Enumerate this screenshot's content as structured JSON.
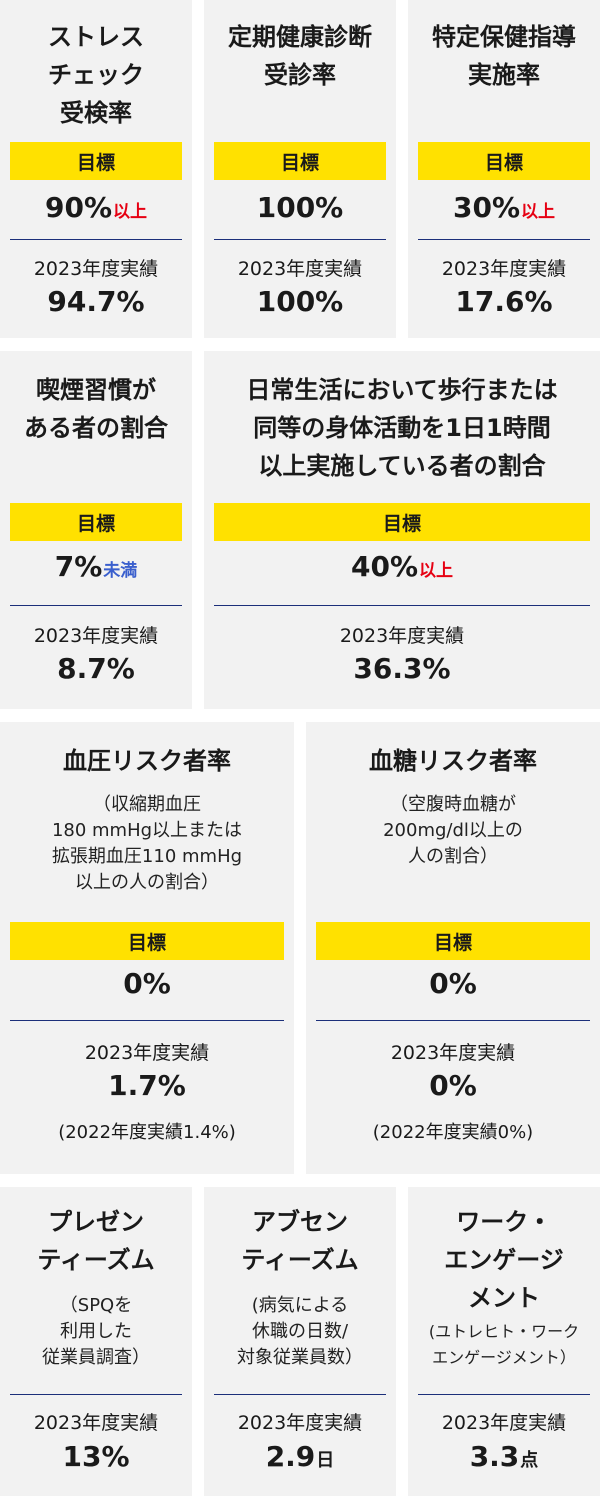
{
  "cards": [
    {
      "title": "ストレス\nチェック\n受検率",
      "target_label": "目標",
      "goal_value": "90%",
      "goal_suffix": "以上",
      "result_label": "2023年度実績",
      "result_value": "94.7%"
    },
    {
      "title": "定期健康診断\n受診率",
      "target_label": "目標",
      "goal_value": "100%",
      "result_label": "2023年度実績",
      "result_value": "100%"
    },
    {
      "title": "特定保健指導\n実施率",
      "target_label": "目標",
      "goal_value": "30%",
      "goal_suffix": "以上",
      "result_label": "2023年度実績",
      "result_value": "17.6%"
    },
    {
      "title": "喫煙習慣が\nある者の割合",
      "target_label": "目標",
      "goal_value": "7%",
      "goal_suffix": "未満",
      "result_label": "2023年度実績",
      "result_value": "8.7%"
    },
    {
      "title": "日常生活において歩行または\n同等の身体活動を1日1時間\n以上実施している者の割合",
      "target_label": "目標",
      "goal_value": "40%",
      "goal_suffix": "以上",
      "result_label": "2023年度実績",
      "result_value": "36.3%"
    },
    {
      "title": "血圧リスク者率",
      "description": "（収縮期血圧\n180 mmHg以上または\n拡張期血圧110 mmHg\n以上の人の割合）",
      "target_label": "目標",
      "goal_value": "0%",
      "result_label": "2023年度実績",
      "result_value": "1.7%",
      "note": "(2022年度実績1.4%)"
    },
    {
      "title": "血糖リスク者率",
      "description": "（空腹時血糖が\n200mg/dl以上の\n人の割合）",
      "target_label": "目標",
      "goal_value": "0%",
      "result_label": "2023年度実績",
      "result_value": "0%",
      "note": "(2022年度実績0%)"
    },
    {
      "title": "プレゼン\nティーズム",
      "description": "（SPQを\n利用した\n従業員調査）",
      "result_label": "2023年度実績",
      "result_value": "13%"
    },
    {
      "title": "アブセン\nティーズム",
      "description": "(病気による\n休職の日数/\n対象従業員数）",
      "result_label": "2023年度実績",
      "result_value": "2.9",
      "result_unit": "日"
    },
    {
      "title": "ワーク・\nエンゲージ\nメント",
      "description": "(ユトレヒト・ワーク\nエンゲージメント）",
      "result_label": "2023年度実績",
      "result_value": "3.3",
      "result_unit": "点"
    }
  ],
  "colors": {
    "card_bg": "#f2f2f2",
    "target_bg": "#ffe100",
    "rule": "#1c2f7a",
    "above": "#e60012",
    "below": "#3a5fcd"
  }
}
